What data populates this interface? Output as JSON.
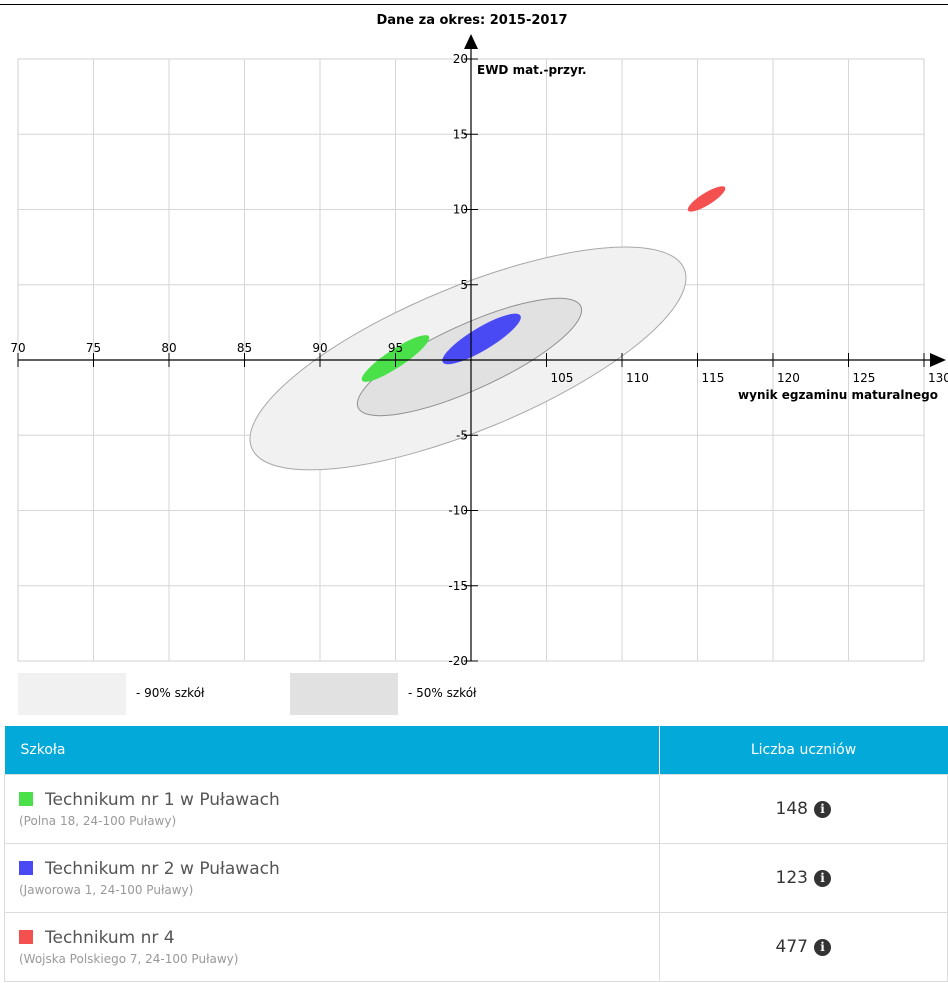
{
  "chart_data": {
    "type": "scatter",
    "title": "Dane za okres: 2015-2017",
    "xlabel": "wynik egzaminu maturalnego",
    "ylabel": "EWD mat.-przyr.",
    "xlim": [
      70,
      130
    ],
    "ylim": [
      -20,
      20
    ],
    "x_ticks": [
      70,
      75,
      80,
      85,
      90,
      95,
      105,
      110,
      115,
      120,
      125,
      130
    ],
    "y_ticks": [
      20,
      15,
      10,
      5,
      -5,
      -10,
      -15,
      -20
    ],
    "axis_cross": {
      "x": 100,
      "y": 0
    },
    "grid": true,
    "regions": [
      {
        "name": "90% szkół",
        "cx": 99.8,
        "cy": 0.1,
        "major": 31.0,
        "minor": 9.5,
        "angle_deg": 22.5,
        "color": "#f1f1f1"
      },
      {
        "name": "50% szkół",
        "cx": 99.9,
        "cy": 0.2,
        "major": 16.2,
        "minor": 4.3,
        "angle_deg": 24.5,
        "color": "#e1e1e1"
      }
    ],
    "series": [
      {
        "name": "Technikum nr 1 w Puławach",
        "x": 95.0,
        "y": 0.1,
        "major": 5.3,
        "minor": 1.2,
        "angle_deg": 33.5,
        "color": "#4ae04a"
      },
      {
        "name": "Technikum nr 2 w Puławach",
        "x": 100.7,
        "y": 1.4,
        "major": 6.0,
        "minor": 1.5,
        "angle_deg": 31.0,
        "color": "#4a4af5"
      },
      {
        "name": "Technikum nr 4",
        "x": 115.6,
        "y": 10.7,
        "major": 2.9,
        "minor": 0.8,
        "angle_deg": 32.0,
        "color": "#f55050"
      }
    ]
  },
  "legend": [
    {
      "label": "- 90% szkół",
      "color": "#f1f1f1"
    },
    {
      "label": "- 50% szkół",
      "color": "#e1e1e1"
    }
  ],
  "table": {
    "header_school": "Szkoła",
    "header_count": "Liczba uczniów",
    "rows": [
      {
        "name": "Technikum nr 1 w Puławach",
        "address": "(Polna 18, 24-100 Puławy)",
        "count": "148",
        "color": "#4ae04a"
      },
      {
        "name": "Technikum nr 2 w Puławach",
        "address": "(Jaworowa 1, 24-100 Puławy)",
        "count": "123",
        "color": "#4a4af5"
      },
      {
        "name": "Technikum nr 4",
        "address": "(Wojska Polskiego 7, 24-100 Puławy)",
        "count": "477",
        "color": "#f55050"
      }
    ],
    "info_icon": "info-circle-icon"
  }
}
